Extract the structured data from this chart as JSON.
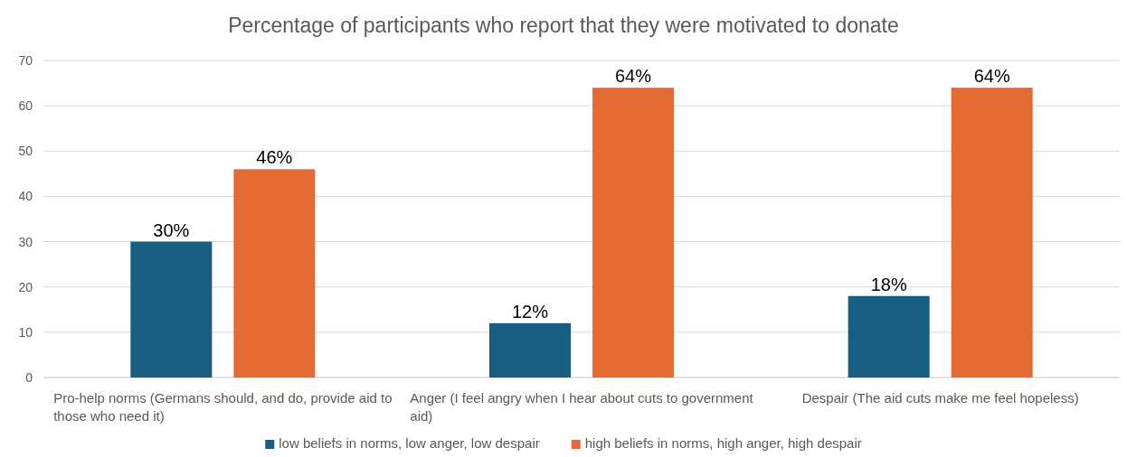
{
  "chart_data": {
    "type": "bar",
    "title": "Percentage of participants who report that they were motivated to donate",
    "categories": [
      "Pro-help norms (Germans should, and do, provide aid to those who need it)",
      "Anger (I feel angry when I hear about cuts to government aid)",
      "Despair (The aid cuts make me feel hopeless)"
    ],
    "series": [
      {
        "name": "low beliefs in norms, low anger, low despair",
        "color": "#175e80",
        "values": [
          30,
          12,
          18
        ],
        "value_labels": [
          "30%",
          "12%",
          "18%"
        ]
      },
      {
        "name": "high beliefs in norms, high anger, high despair",
        "color": "#e46c33",
        "values": [
          46,
          64,
          64
        ],
        "value_labels": [
          "46%",
          "64%",
          "64%"
        ]
      }
    ],
    "ylim": [
      0,
      70
    ],
    "yticks": [
      0,
      10,
      20,
      30,
      40,
      50,
      60,
      70
    ],
    "grid": "y",
    "legend": "bottom"
  }
}
